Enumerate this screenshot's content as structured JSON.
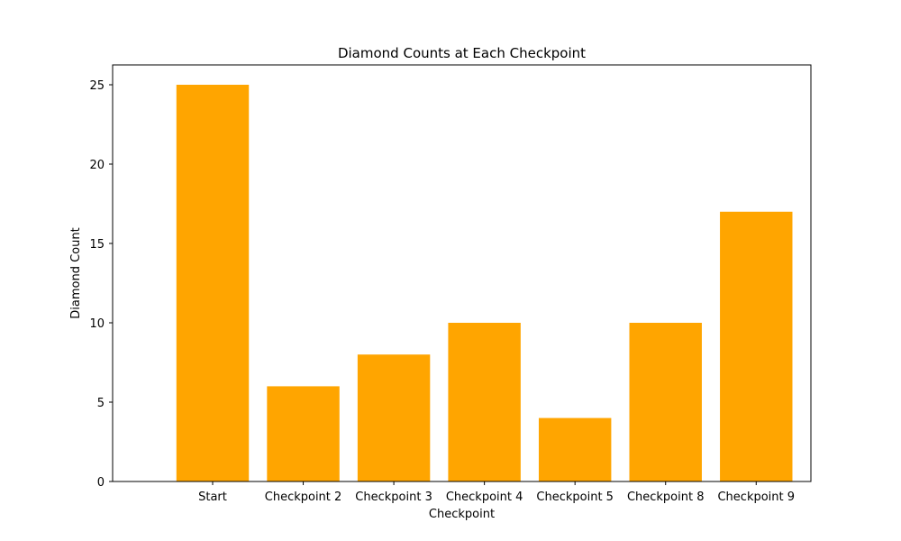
{
  "chart_data": {
    "type": "bar",
    "title": "Diamond Counts at Each Checkpoint",
    "xlabel": "Checkpoint",
    "ylabel": "Diamond Count",
    "categories": [
      "Start",
      "Checkpoint 2",
      "Checkpoint 3",
      "Checkpoint 4",
      "Checkpoint 5",
      "Checkpoint 8",
      "Checkpoint 9"
    ],
    "values": [
      25,
      6,
      8,
      10,
      4,
      10,
      17
    ],
    "ylim": [
      0,
      26.25
    ],
    "yticks": [
      0,
      5,
      10,
      15,
      20,
      25
    ],
    "bar_color": "#ffa500",
    "grid": false,
    "legend": "none"
  }
}
